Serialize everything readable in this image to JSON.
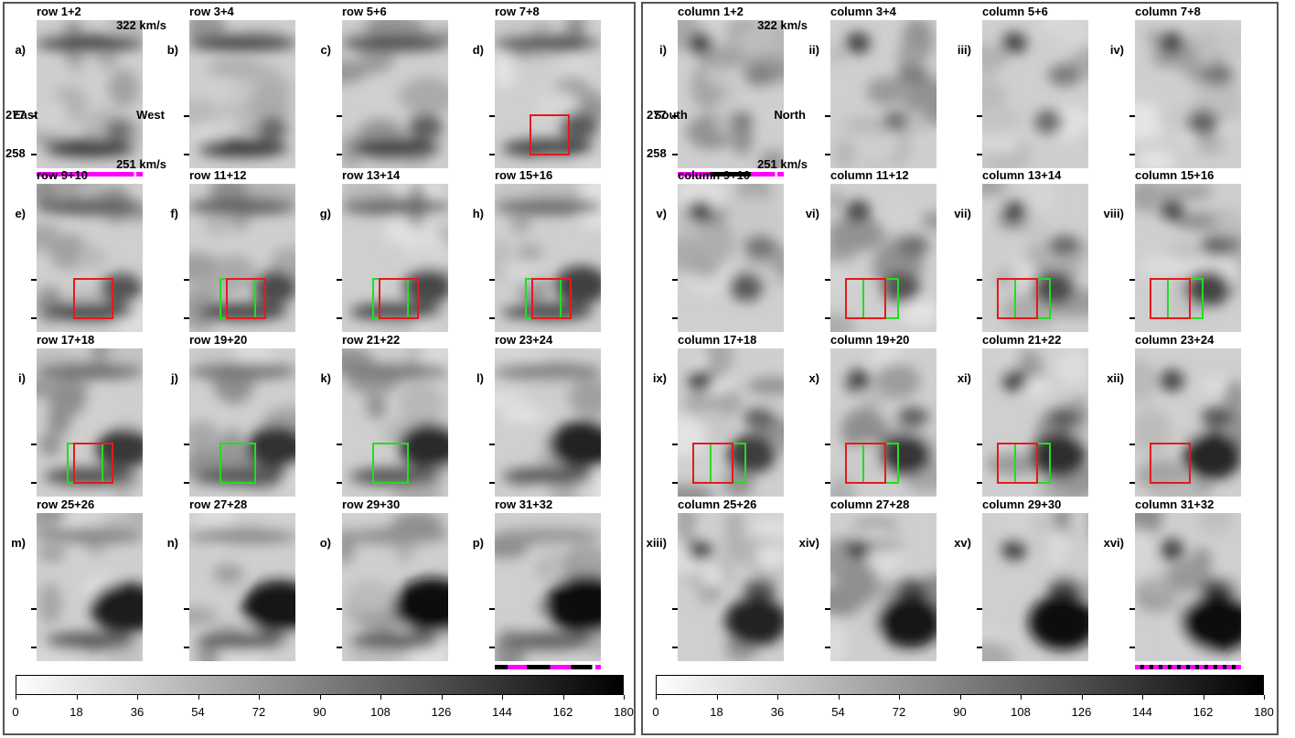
{
  "velocity_labels": {
    "top": "322 km/s",
    "bottom": "251 km/s"
  },
  "y_ticks": [
    "277",
    "258"
  ],
  "directions": {
    "left": {
      "west": "West",
      "east": "East"
    },
    "right": {
      "south": "South",
      "north": "North"
    }
  },
  "colorbar": {
    "ticks": [
      "0",
      "18",
      "36",
      "54",
      "72",
      "90",
      "108",
      "126",
      "144",
      "162",
      "180"
    ],
    "min": 0,
    "max": 180,
    "from_color": "#ffffff",
    "to_color": "#000000"
  },
  "colors": {
    "red_box": "#e41a1c",
    "green_box": "#22dd22",
    "magenta_bar": "#ff00ff",
    "frame": "#555555"
  },
  "left_panels": [
    {
      "label": "a)",
      "title": "row 1+2"
    },
    {
      "label": "b)",
      "title": "row 3+4"
    },
    {
      "label": "c)",
      "title": "row 5+6"
    },
    {
      "label": "d)",
      "title": "row 7+8"
    },
    {
      "label": "e)",
      "title": "row 9+10"
    },
    {
      "label": "f)",
      "title": "row 11+12"
    },
    {
      "label": "g)",
      "title": "row 13+14"
    },
    {
      "label": "h)",
      "title": "row 15+16"
    },
    {
      "label": "i)",
      "title": "row 17+18"
    },
    {
      "label": "j)",
      "title": "row 19+20"
    },
    {
      "label": "k)",
      "title": "row 21+22"
    },
    {
      "label": "l)",
      "title": "row 23+24"
    },
    {
      "label": "m)",
      "title": "row 25+26"
    },
    {
      "label": "n)",
      "title": "row 27+28"
    },
    {
      "label": "o)",
      "title": "row 29+30"
    },
    {
      "label": "p)",
      "title": "row 31+32"
    }
  ],
  "right_panels": [
    {
      "label": "i)",
      "title": "column 1+2"
    },
    {
      "label": "ii)",
      "title": "column 3+4"
    },
    {
      "label": "iii)",
      "title": "column 5+6"
    },
    {
      "label": "iv)",
      "title": "column 7+8"
    },
    {
      "label": "v)",
      "title": "column 9+10"
    },
    {
      "label": "vi)",
      "title": "column 11+12"
    },
    {
      "label": "vii)",
      "title": "column 13+14"
    },
    {
      "label": "viii)",
      "title": "column 15+16"
    },
    {
      "label": "ix)",
      "title": "column 17+18"
    },
    {
      "label": "x)",
      "title": "column 19+20"
    },
    {
      "label": "xi)",
      "title": "column 21+22"
    },
    {
      "label": "xii)",
      "title": "column 23+24"
    },
    {
      "label": "xiii)",
      "title": "column 25+26"
    },
    {
      "label": "xiv)",
      "title": "column 27+28"
    },
    {
      "label": "xv)",
      "title": "column 29+30"
    },
    {
      "label": "xvi)",
      "title": "column 31+32"
    }
  ]
}
